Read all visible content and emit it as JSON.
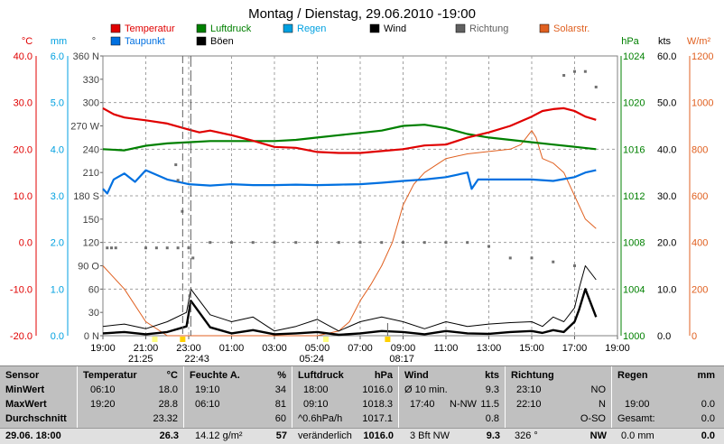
{
  "chart_data": {
    "type": "line",
    "title": "Montag / Dienstag, 29.06.2010  -19:00",
    "legend": [
      {
        "name": "Temperatur",
        "color": "#e00000"
      },
      {
        "name": "Taupunkt",
        "color": "#0070e0"
      },
      {
        "name": "Luftdruck",
        "color": "#008000"
      },
      {
        "name": "Böen",
        "color": "#000000"
      },
      {
        "name": "Regen",
        "color": "#00a0e0"
      },
      {
        "name": "Wind",
        "color": "#000000"
      },
      {
        "name": "Richtung",
        "color": "#606060"
      },
      {
        "name": "Solarstr.",
        "color": "#e06020"
      }
    ],
    "axes": {
      "temp": {
        "unit": "°C",
        "ticks": [
          "40.0",
          "30.0",
          "20.0",
          "10.0",
          "0.0",
          "-10.0",
          "-20.0"
        ],
        "range": [
          -20,
          40
        ],
        "color": "#e00000"
      },
      "rain": {
        "unit": "mm",
        "ticks": [
          "6.0",
          "5.0",
          "4.0",
          "3.0",
          "2.0",
          "1.0",
          "0.0"
        ],
        "range": [
          0,
          6
        ],
        "color": "#00a0e0"
      },
      "dir": {
        "unit": "°",
        "ticks": [
          "360 N",
          "330",
          "300",
          "270 W",
          "240",
          "210",
          "180 S",
          "150",
          "120",
          "90 O",
          "60",
          "30",
          "0 N"
        ],
        "range": [
          0,
          360
        ]
      },
      "press": {
        "unit": "hPa",
        "ticks": [
          "1024",
          "1020",
          "1016",
          "1012",
          "1008",
          "1004",
          "1000"
        ],
        "range": [
          1000,
          1024
        ],
        "color": "#008000"
      },
      "wind": {
        "unit": "kts",
        "ticks": [
          "60.0",
          "50.0",
          "40.0",
          "30.0",
          "20.0",
          "10.0",
          "0.0"
        ],
        "range": [
          0,
          60
        ]
      },
      "solar": {
        "unit": "W/m²",
        "ticks": [
          "1200",
          "1000",
          "800",
          "600",
          "400",
          "200",
          "0"
        ],
        "range": [
          0,
          1200
        ],
        "color": "#e06020"
      }
    },
    "x_ticks": [
      "19:00",
      "21:00",
      "23:00",
      "01:00",
      "03:00",
      "05:00",
      "07:00",
      "09:00",
      "11:00",
      "13:00",
      "15:00",
      "17:00",
      "19:00"
    ],
    "x_range_hours": [
      0,
      24
    ],
    "markers": [
      {
        "label": "21:25",
        "hour": 2.42,
        "color": "#ffff80"
      },
      {
        "label": "22:43",
        "hour": 3.72,
        "color": "#ffd000"
      },
      {
        "label": "05:24",
        "hour": 10.4,
        "color": "#ffff80"
      },
      {
        "label": "08:17",
        "hour": 13.28,
        "color": "#ffd000"
      }
    ],
    "series": [
      {
        "name": "Temperatur",
        "axis": "temp",
        "x": [
          0,
          0.5,
          1,
          1.5,
          2,
          3,
          4,
          4.5,
          5,
          6,
          7,
          8,
          9,
          10,
          11,
          12,
          13,
          14,
          15,
          16,
          17,
          18,
          19,
          20,
          20.5,
          21,
          21.5,
          22,
          22.5,
          23
        ],
        "values": [
          28.8,
          27.5,
          26.8,
          26.5,
          26.2,
          25.5,
          24.2,
          23.6,
          24,
          23,
          21.8,
          20.5,
          20.3,
          19.4,
          19.2,
          19.2,
          19.6,
          20,
          20.8,
          21,
          22.5,
          23.6,
          25,
          27,
          28.2,
          28.6,
          28.8,
          28.2,
          27,
          26.3
        ]
      },
      {
        "name": "Taupunkt",
        "axis": "temp",
        "x": [
          0,
          0.2,
          0.5,
          1,
          1.5,
          2,
          3,
          4,
          5,
          6,
          7,
          8,
          9,
          10,
          11,
          12,
          13,
          14,
          15,
          16,
          17,
          17.2,
          17.5,
          18,
          19,
          20,
          21,
          22,
          22.5,
          23
        ],
        "values": [
          11.5,
          10.5,
          13.5,
          14.8,
          13,
          15.5,
          13.5,
          12.5,
          12.2,
          12.5,
          12.3,
          12.3,
          12.4,
          12.3,
          12.4,
          12.5,
          12.8,
          13.2,
          13.5,
          14,
          15,
          11.5,
          13.5,
          13.5,
          13.5,
          13.5,
          13.2,
          14,
          15,
          15.5
        ]
      },
      {
        "name": "Luftdruck",
        "axis": "press",
        "x": [
          0,
          1,
          2,
          3,
          4,
          5,
          6,
          7,
          8,
          9,
          10,
          11,
          12,
          13,
          14,
          15,
          16,
          17,
          18,
          19,
          20,
          21,
          22,
          23
        ],
        "values": [
          1016.0,
          1015.9,
          1016.3,
          1016.5,
          1016.6,
          1016.7,
          1016.7,
          1016.7,
          1016.7,
          1016.8,
          1017.0,
          1017.2,
          1017.4,
          1017.6,
          1018.0,
          1018.1,
          1017.8,
          1017.3,
          1017.0,
          1016.8,
          1016.6,
          1016.4,
          1016.2,
          1016.0
        ]
      },
      {
        "name": "Wind",
        "axis": "wind",
        "x": [
          0,
          1,
          2,
          3,
          3.9,
          4.1,
          5,
          6,
          7,
          8,
          9,
          10,
          11,
          12,
          13,
          14,
          15,
          16,
          17,
          18,
          19,
          20,
          20.5,
          21,
          21.5,
          22,
          22.2,
          22.5,
          23
        ],
        "values": [
          0.5,
          0.8,
          0.3,
          0.8,
          2,
          7.5,
          1.8,
          0.5,
          1.2,
          0.3,
          0.5,
          0.8,
          0.2,
          0.5,
          1,
          0.8,
          0.3,
          1,
          0.5,
          0.4,
          0.8,
          1,
          0.6,
          1.2,
          0.8,
          3,
          5.5,
          10,
          4
        ]
      },
      {
        "name": "Böen",
        "axis": "wind",
        "x": [
          0,
          1,
          2,
          3,
          3.9,
          4.1,
          5,
          6,
          7,
          8,
          9,
          10,
          11,
          12,
          13,
          14,
          15,
          16,
          17,
          18,
          19,
          20,
          20.5,
          21,
          21.5,
          22,
          22.2,
          22.5,
          23
        ],
        "values": [
          2,
          2.5,
          1.5,
          3,
          5,
          10,
          4.5,
          3,
          4,
          1,
          2,
          3.5,
          1,
          3,
          4,
          3,
          1.5,
          3,
          2,
          2.5,
          2.8,
          3,
          2,
          4,
          3,
          6,
          10,
          15,
          12
        ]
      },
      {
        "name": "Solarstr.",
        "axis": "solar",
        "x": [
          0,
          1,
          2,
          3,
          4,
          5,
          6,
          7,
          8,
          9,
          10,
          11,
          11.5,
          12,
          12.5,
          13,
          13.5,
          14,
          14.5,
          15,
          16,
          17,
          18,
          19,
          19.5,
          20,
          20.2,
          20.5,
          21,
          21.5,
          22,
          22.5,
          23
        ],
        "values": [
          300,
          200,
          60,
          0,
          0,
          0,
          0,
          0,
          0,
          0,
          0,
          20,
          60,
          150,
          220,
          300,
          400,
          560,
          650,
          700,
          760,
          780,
          790,
          800,
          820,
          880,
          850,
          760,
          740,
          700,
          600,
          500,
          460
        ]
      }
    ],
    "direction_points": {
      "axis": "dir",
      "segments": [
        {
          "x": [
            0.2,
            0.4,
            0.6
          ],
          "values": [
            113,
            113,
            113
          ]
        },
        {
          "x": [
            2,
            2.5,
            3,
            3.5,
            4
          ],
          "values": [
            113,
            113,
            113,
            113,
            113
          ]
        },
        {
          "x": [
            5,
            6,
            7,
            8,
            9,
            10,
            11,
            12,
            13,
            14,
            15,
            16,
            17,
            18,
            19,
            20,
            21,
            22
          ],
          "values": [
            120,
            120,
            120,
            120,
            120,
            120,
            120,
            120,
            120,
            120,
            120,
            120,
            120,
            115,
            100,
            100,
            95,
            90
          ]
        },
        {
          "x": [
            21.5,
            22,
            22.5,
            23
          ],
          "values": [
            335,
            340,
            340,
            320
          ]
        },
        {
          "x": [
            3.4,
            3.5,
            3.7,
            4.2
          ],
          "values": [
            220,
            200,
            160,
            100
          ]
        }
      ]
    }
  },
  "table": {
    "sensor": {
      "header": "Sensor",
      "rows": [
        "MinWert",
        "MaxWert",
        "Durchschnitt"
      ],
      "last": "29.06. 18:00"
    },
    "temperature": {
      "header": "Temperatur",
      "unit": "°C",
      "min_time": "06:10",
      "min": "18.0",
      "max_time": "19:20",
      "max": "28.8",
      "avg": "23.32",
      "last": "26.3"
    },
    "humidity": {
      "header": "Feuchte A.",
      "unit": "%",
      "min_time": "19:10",
      "min": "34",
      "max_time": "06:10",
      "max": "81",
      "avg": "60",
      "last_extra": "14.12 g/m²",
      "last": "57"
    },
    "pressure": {
      "header": "Luftdruck",
      "unit": "hPa",
      "min_time": "18:00",
      "min": "1016.0",
      "max_time": "09:10",
      "max": "1018.3",
      "avg_label": "^0.6hPa/h",
      "avg": "1017.1",
      "last_label": "veränderlich",
      "last": "1016.0"
    },
    "wind": {
      "header": "Wind",
      "unit": "kts",
      "r1_label": "Ø 10 min.",
      "r1": "9.3",
      "r2_time": "17:40",
      "r2_dir": "N-NW",
      "r2": "11.5",
      "avg": "0.8",
      "last_label": "3 Bft NW",
      "last": "9.3"
    },
    "direction": {
      "header": "Richtung",
      "r1_time": "23:10",
      "r1": "NO",
      "r2_time": "22:10",
      "r2": "N",
      "avg": "O-SO",
      "last_label": "326 °",
      "last": "NW"
    },
    "rain": {
      "header": "Regen",
      "unit": "mm",
      "r2_time": "19:00",
      "r2": "0.0",
      "r3_label": "Gesamt:",
      "r3": "0.0",
      "last_label": "0.0 mm",
      "last": "0.0"
    }
  }
}
